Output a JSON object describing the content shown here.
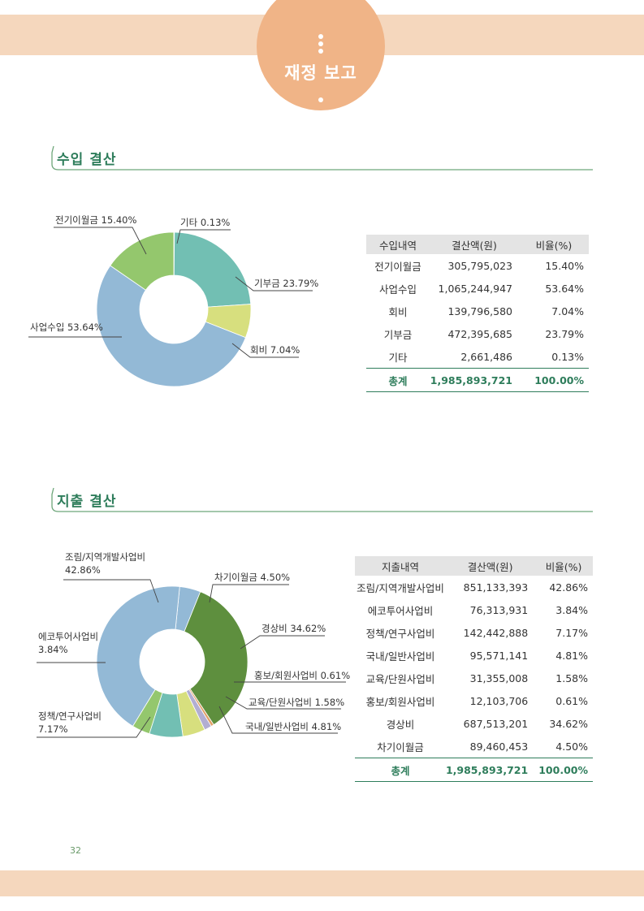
{
  "header": {
    "title": "재정 보고"
  },
  "page_number": "32",
  "income": {
    "section_title": "수입 결산",
    "table": {
      "headers": [
        "수입내역",
        "결산액(원)",
        "비율(%)"
      ],
      "rows": [
        [
          "전기이월금",
          "305,795,023",
          "15.40%"
        ],
        [
          "사업수입",
          "1,065,244,947",
          "53.64%"
        ],
        [
          "회비",
          "139,796,580",
          "7.04%"
        ],
        [
          "기부금",
          "472,395,685",
          "23.79%"
        ],
        [
          "기타",
          "2,661,486",
          "0.13%"
        ]
      ],
      "total": [
        "총계",
        "1,985,893,721",
        "100.00%"
      ]
    }
  },
  "expense": {
    "section_title": "지출 결산",
    "table": {
      "headers": [
        "지출내역",
        "결산액(원)",
        "비율(%)"
      ],
      "rows": [
        [
          "조림/지역개발사업비",
          "851,133,393",
          "42.86%"
        ],
        [
          "에코투어사업비",
          "76,313,931",
          "3.84%"
        ],
        [
          "정책/연구사업비",
          "142,442,888",
          "7.17%"
        ],
        [
          "국내/일반사업비",
          "95,571,141",
          "4.81%"
        ],
        [
          "교육/단원사업비",
          "31,355,008",
          "1.58%"
        ],
        [
          "홍보/회원사업비",
          "12,103,706",
          "0.61%"
        ],
        [
          "경상비",
          "687,513,201",
          "34.62%"
        ],
        [
          "차기이월금",
          "89,460,453",
          "4.50%"
        ]
      ],
      "total": [
        "총계",
        "1,985,893,721",
        "100.00%"
      ]
    }
  },
  "chart_data": [
    {
      "type": "pie",
      "donut": true,
      "categories": [
        "기타",
        "기부금",
        "회비",
        "사업수입",
        "전기이월금"
      ],
      "values": [
        0.13,
        23.79,
        7.04,
        53.64,
        15.4
      ],
      "colors": [
        "#3e6b3e",
        "#72bfb3",
        "#d7df7e",
        "#93b9d6",
        "#94c76d"
      ],
      "slice_labels": [
        "기타 0.13%",
        "기부금 23.79%",
        "회비 7.04%",
        "사업수입 53.64%",
        "전기이월금 15.40%"
      ]
    },
    {
      "type": "pie",
      "donut": true,
      "categories": [
        "차기이월금",
        "경상비",
        "홍보/회원사업비",
        "교육/단원사업비",
        "국내/일반사업비",
        "정책/연구사업비",
        "에코투어사업비",
        "조림/지역개발사업비"
      ],
      "values": [
        4.5,
        34.62,
        0.61,
        1.58,
        4.81,
        7.17,
        3.84,
        42.86
      ],
      "colors": [
        "#93b9d6",
        "#5e8f3e",
        "#e0a068",
        "#b2aed2",
        "#d7df7e",
        "#72bfb3",
        "#94c76d",
        "#93b9d6"
      ],
      "slice_labels": [
        [
          "차기이월금 4.50%"
        ],
        [
          "경상비 34.62%"
        ],
        [
          "홍보/회원사업비 0.61%"
        ],
        [
          "교육/단원사업비 1.58%"
        ],
        [
          "국내/일반사업비 4.81%"
        ],
        [
          "정책/연구사업비",
          "7.17%"
        ],
        [
          "에코투어사업비",
          "3.84%"
        ],
        [
          "조림/지역개발사업비",
          "42.86%"
        ]
      ]
    }
  ]
}
